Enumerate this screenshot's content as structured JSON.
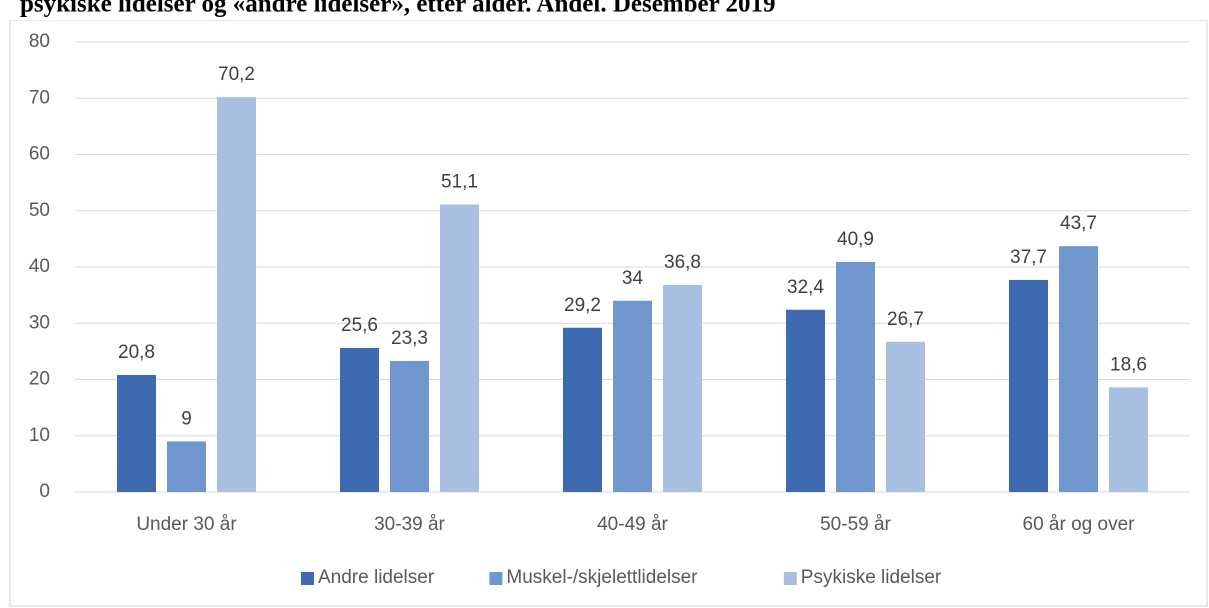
{
  "chart_data": {
    "type": "bar",
    "title": "psykiske lidelser og «andre lidelser», etter alder. Andel. Desember 2019",
    "categories": [
      "Under 30 år",
      "30-39 år",
      "40-49 år",
      "50-59 år",
      "60 år og over"
    ],
    "series": [
      {
        "name": "Andre lidelser",
        "color": "#3d6ab1",
        "values": [
          20.8,
          25.6,
          29.2,
          32.4,
          37.7
        ],
        "value_labels": [
          "20,8",
          "25,6",
          "29,2",
          "32,4",
          "37,7"
        ]
      },
      {
        "name": "Muskel-/skjelettlidelser",
        "color": "#6f96cd",
        "values": [
          9,
          23.3,
          34,
          40.9,
          43.7
        ],
        "value_labels": [
          "9",
          "23,3",
          "34",
          "40,9",
          "43,7"
        ]
      },
      {
        "name": "Psykiske lidelser",
        "color": "#a9bfe1",
        "values": [
          70.2,
          51.1,
          36.8,
          26.7,
          18.6
        ],
        "value_labels": [
          "70,2",
          "51,1",
          "36,8",
          "26,7",
          "18,6"
        ]
      }
    ],
    "ylim": [
      0,
      80
    ],
    "yticks": [
      0,
      10,
      20,
      30,
      40,
      50,
      60,
      70,
      80
    ],
    "grid": true,
    "legend": "bottom"
  }
}
